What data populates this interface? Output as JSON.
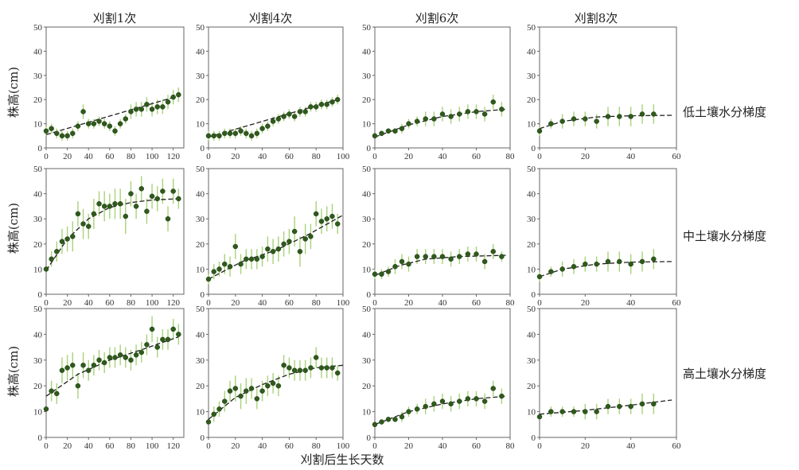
{
  "figure": {
    "col_titles": [
      "刈割1次",
      "刈割4次",
      "刈割6次",
      "刈割8次"
    ],
    "row_labels": [
      "低土壤水分梯度",
      "中土壤水分梯度",
      "高土壤水分梯度"
    ],
    "ylabel": "株高(cm)",
    "xlabel": "刈割后生长天数",
    "colors": {
      "point": "#2f5a1c",
      "errorbar": "#a8d27a",
      "trend": "#222222",
      "axis": "#666666"
    }
  },
  "chart_data": [
    {
      "type": "scatter",
      "row": 0,
      "col": 0,
      "xlim": [
        0,
        130
      ],
      "ylim": [
        0,
        50
      ],
      "xticks": [
        0,
        20,
        40,
        60,
        80,
        100,
        120
      ],
      "yticks": [
        0,
        10,
        20,
        30,
        40,
        50
      ],
      "x": [
        0,
        5,
        10,
        15,
        20,
        25,
        30,
        35,
        40,
        45,
        50,
        55,
        60,
        65,
        70,
        75,
        80,
        85,
        90,
        95,
        100,
        105,
        110,
        115,
        120,
        125
      ],
      "y": [
        7,
        8,
        6,
        5,
        5,
        6,
        9,
        15,
        10,
        10,
        11,
        10,
        9,
        7,
        10,
        12,
        15,
        16,
        16,
        18,
        16,
        17,
        17,
        19,
        21,
        22
      ],
      "err": [
        2,
        2,
        2,
        2,
        2,
        2,
        2,
        3,
        2,
        2,
        2,
        2,
        2,
        2,
        2,
        2,
        3,
        3,
        3,
        3,
        3,
        3,
        3,
        3,
        3,
        3
      ],
      "trend": [
        [
          0,
          5.5
        ],
        [
          125,
          21.5
        ]
      ]
    },
    {
      "type": "scatter",
      "row": 0,
      "col": 1,
      "xlim": [
        0,
        100
      ],
      "ylim": [
        0,
        50
      ],
      "xticks": [
        0,
        20,
        40,
        60,
        80,
        100
      ],
      "yticks": [
        0,
        10,
        20,
        30,
        40,
        50
      ],
      "x": [
        0,
        4,
        8,
        12,
        16,
        20,
        24,
        28,
        32,
        36,
        40,
        44,
        48,
        52,
        56,
        60,
        64,
        68,
        72,
        76,
        80,
        84,
        88,
        92,
        96
      ],
      "y": [
        5,
        5,
        5,
        6,
        6,
        6,
        7,
        6,
        5,
        6,
        8,
        9,
        11,
        12,
        13,
        14,
        13,
        15,
        15,
        17,
        17,
        18,
        18,
        19,
        20
      ],
      "err": [
        2,
        2,
        2,
        2,
        2,
        2,
        2,
        2,
        2,
        2,
        2,
        2,
        2,
        2,
        2,
        2,
        2,
        2,
        2,
        2,
        2,
        2,
        2,
        2,
        2
      ],
      "trend": [
        [
          0,
          4.5
        ],
        [
          96,
          20
        ]
      ]
    },
    {
      "type": "scatter",
      "row": 0,
      "col": 2,
      "xlim": [
        0,
        80
      ],
      "ylim": [
        0,
        50
      ],
      "xticks": [
        0,
        20,
        40,
        60,
        80
      ],
      "yticks": [
        0,
        10,
        20,
        30,
        40,
        50
      ],
      "x": [
        0,
        4,
        8,
        12,
        16,
        20,
        25,
        30,
        35,
        40,
        45,
        50,
        55,
        60,
        65,
        70,
        75
      ],
      "y": [
        5,
        6,
        7,
        7,
        8,
        10,
        11,
        12,
        12,
        14,
        13,
        14,
        15,
        15,
        14,
        19,
        16
      ],
      "err": [
        1,
        1,
        1,
        1,
        2,
        2,
        2,
        3,
        3,
        3,
        3,
        3,
        3,
        3,
        3,
        3,
        3
      ],
      "trend": [
        [
          0,
          4.5
        ],
        [
          20,
          9.5
        ],
        [
          40,
          13
        ],
        [
          60,
          15
        ],
        [
          78,
          16
        ]
      ]
    },
    {
      "type": "scatter",
      "row": 0,
      "col": 3,
      "xlim": [
        0,
        60
      ],
      "ylim": [
        0,
        50
      ],
      "xticks": [
        0,
        20,
        40,
        60
      ],
      "yticks": [
        0,
        10,
        20,
        30,
        40,
        50
      ],
      "x": [
        0,
        5,
        10,
        15,
        20,
        25,
        30,
        35,
        40,
        45,
        50
      ],
      "y": [
        7,
        10,
        11,
        12,
        12,
        11,
        13,
        13,
        13,
        14,
        14
      ],
      "err": [
        2,
        2,
        3,
        3,
        3,
        3,
        4,
        4,
        4,
        4,
        4
      ],
      "trend": [
        [
          0,
          8
        ],
        [
          10,
          11
        ],
        [
          25,
          12.8
        ],
        [
          40,
          13.3
        ],
        [
          58,
          13.5
        ]
      ]
    },
    {
      "type": "scatter",
      "row": 1,
      "col": 0,
      "xlim": [
        0,
        130
      ],
      "ylim": [
        0,
        50
      ],
      "xticks": [
        0,
        20,
        40,
        60,
        80,
        100,
        120
      ],
      "yticks": [
        0,
        10,
        20,
        30,
        40,
        50
      ],
      "x": [
        0,
        5,
        10,
        15,
        20,
        25,
        30,
        35,
        40,
        45,
        50,
        55,
        60,
        65,
        70,
        75,
        80,
        85,
        90,
        95,
        100,
        105,
        110,
        115,
        120,
        125
      ],
      "y": [
        10,
        14,
        17,
        21,
        22,
        23,
        32,
        28,
        27,
        32,
        36,
        35,
        35,
        36,
        36,
        31,
        40,
        35,
        42,
        33,
        39,
        38,
        41,
        30,
        41,
        38
      ],
      "err": [
        1,
        3,
        4,
        5,
        5,
        6,
        5,
        6,
        5,
        6,
        5,
        6,
        5,
        6,
        6,
        7,
        5,
        5,
        5,
        5,
        5,
        5,
        5,
        5,
        5,
        4
      ],
      "trend": [
        [
          0,
          9.5
        ],
        [
          20,
          22
        ],
        [
          40,
          30
        ],
        [
          60,
          34.5
        ],
        [
          80,
          36.5
        ],
        [
          100,
          37.5
        ],
        [
          125,
          38
        ]
      ]
    },
    {
      "type": "scatter",
      "row": 1,
      "col": 1,
      "xlim": [
        0,
        100
      ],
      "ylim": [
        0,
        50
      ],
      "xticks": [
        0,
        20,
        40,
        60,
        80,
        100
      ],
      "yticks": [
        0,
        10,
        20,
        30,
        40,
        50
      ],
      "x": [
        0,
        4,
        8,
        12,
        16,
        20,
        24,
        28,
        32,
        36,
        40,
        44,
        48,
        52,
        56,
        60,
        64,
        68,
        72,
        76,
        80,
        84,
        88,
        92,
        96
      ],
      "y": [
        6,
        9,
        10,
        12,
        11,
        19,
        12,
        14,
        14,
        14,
        15,
        18,
        17,
        18,
        20,
        21,
        25,
        17,
        22,
        23,
        32,
        29,
        30,
        31,
        28
      ],
      "err": [
        2,
        3,
        3,
        4,
        4,
        5,
        4,
        4,
        4,
        4,
        4,
        5,
        5,
        5,
        5,
        5,
        6,
        6,
        6,
        5,
        5,
        5,
        5,
        5,
        4
      ],
      "trend": [
        [
          0,
          6
        ],
        [
          25,
          13
        ],
        [
          50,
          17.5
        ],
        [
          75,
          24
        ],
        [
          100,
          31.5
        ]
      ]
    },
    {
      "type": "scatter",
      "row": 1,
      "col": 2,
      "xlim": [
        0,
        80
      ],
      "ylim": [
        0,
        50
      ],
      "xticks": [
        0,
        20,
        40,
        60,
        80
      ],
      "yticks": [
        0,
        10,
        20,
        30,
        40,
        50
      ],
      "x": [
        0,
        4,
        8,
        12,
        16,
        20,
        25,
        30,
        35,
        40,
        45,
        50,
        55,
        60,
        65,
        70,
        75
      ],
      "y": [
        8,
        8,
        9,
        11,
        13,
        12,
        15,
        15,
        15,
        15,
        14,
        15,
        16,
        16,
        13,
        17,
        15
      ],
      "err": [
        2,
        2,
        2,
        3,
        3,
        3,
        3,
        3,
        3,
        3,
        3,
        3,
        3,
        3,
        3,
        3,
        2
      ],
      "trend": [
        [
          0,
          7.5
        ],
        [
          15,
          11.5
        ],
        [
          30,
          14
        ],
        [
          50,
          15
        ],
        [
          78,
          15.5
        ]
      ]
    },
    {
      "type": "scatter",
      "row": 1,
      "col": 3,
      "xlim": [
        0,
        60
      ],
      "ylim": [
        0,
        50
      ],
      "xticks": [
        0,
        20,
        40,
        60
      ],
      "yticks": [
        0,
        10,
        20,
        30,
        40,
        50
      ],
      "x": [
        0,
        5,
        10,
        15,
        20,
        25,
        30,
        35,
        40,
        45,
        50
      ],
      "y": [
        7,
        9,
        10,
        11,
        12,
        12,
        13,
        13,
        12,
        13,
        14
      ],
      "err": [
        2,
        2,
        3,
        3,
        3,
        3,
        4,
        4,
        4,
        4,
        4
      ],
      "trend": [
        [
          0,
          7
        ],
        [
          10,
          10
        ],
        [
          25,
          12
        ],
        [
          40,
          12.8
        ],
        [
          58,
          13
        ]
      ]
    },
    {
      "type": "scatter",
      "row": 2,
      "col": 0,
      "xlim": [
        0,
        130
      ],
      "ylim": [
        0,
        50
      ],
      "xticks": [
        0,
        20,
        40,
        60,
        80,
        100,
        120
      ],
      "yticks": [
        0,
        10,
        20,
        30,
        40,
        50
      ],
      "x": [
        0,
        5,
        10,
        15,
        20,
        25,
        30,
        35,
        40,
        45,
        50,
        55,
        60,
        65,
        70,
        75,
        80,
        85,
        90,
        95,
        100,
        105,
        110,
        115,
        120,
        125
      ],
      "y": [
        11,
        18,
        17,
        26,
        27,
        28,
        20,
        28,
        26,
        28,
        30,
        29,
        31,
        31,
        32,
        31,
        30,
        32,
        33,
        36,
        42,
        35,
        38,
        38,
        42,
        40
      ],
      "err": [
        1,
        4,
        4,
        5,
        5,
        5,
        5,
        5,
        4,
        4,
        4,
        4,
        4,
        4,
        4,
        4,
        4,
        4,
        4,
        4,
        5,
        4,
        4,
        4,
        4,
        4
      ],
      "trend": [
        [
          0,
          16
        ],
        [
          30,
          24.5
        ],
        [
          60,
          30
        ],
        [
          90,
          34
        ],
        [
          125,
          39
        ]
      ]
    },
    {
      "type": "scatter",
      "row": 2,
      "col": 1,
      "xlim": [
        0,
        100
      ],
      "ylim": [
        0,
        50
      ],
      "xticks": [
        0,
        20,
        40,
        60,
        80,
        100
      ],
      "yticks": [
        0,
        10,
        20,
        30,
        40,
        50
      ],
      "x": [
        0,
        4,
        8,
        12,
        16,
        20,
        24,
        28,
        32,
        36,
        40,
        44,
        48,
        52,
        56,
        60,
        64,
        68,
        72,
        76,
        80,
        84,
        88,
        92,
        96
      ],
      "y": [
        6,
        9,
        11,
        14,
        18,
        19,
        16,
        18,
        19,
        15,
        18,
        20,
        21,
        20,
        28,
        27,
        26,
        26,
        26,
        27,
        31,
        27,
        27,
        27,
        25
      ],
      "err": [
        1,
        3,
        3,
        4,
        4,
        5,
        5,
        5,
        4,
        4,
        4,
        4,
        4,
        4,
        4,
        4,
        4,
        4,
        4,
        4,
        4,
        4,
        4,
        4,
        3
      ],
      "trend": [
        [
          0,
          7
        ],
        [
          20,
          15.5
        ],
        [
          40,
          20.5
        ],
        [
          60,
          24.5
        ],
        [
          80,
          27
        ],
        [
          100,
          28
        ]
      ]
    },
    {
      "type": "scatter",
      "row": 2,
      "col": 2,
      "xlim": [
        0,
        80
      ],
      "ylim": [
        0,
        50
      ],
      "xticks": [
        0,
        20,
        40,
        60,
        80
      ],
      "yticks": [
        0,
        10,
        20,
        30,
        40,
        50
      ],
      "x": [
        0,
        4,
        8,
        12,
        16,
        20,
        25,
        30,
        35,
        40,
        45,
        50,
        55,
        60,
        65,
        70,
        75
      ],
      "y": [
        5,
        6,
        7,
        7,
        8,
        10,
        11,
        12,
        13,
        14,
        13,
        14,
        15,
        15,
        14,
        19,
        16
      ],
      "err": [
        1,
        1,
        1,
        1,
        2,
        2,
        2,
        3,
        3,
        3,
        3,
        3,
        3,
        3,
        3,
        3,
        3
      ],
      "trend": [
        [
          0,
          5
        ],
        [
          20,
          10
        ],
        [
          40,
          13
        ],
        [
          60,
          15
        ],
        [
          78,
          16
        ]
      ]
    },
    {
      "type": "scatter",
      "row": 2,
      "col": 3,
      "xlim": [
        0,
        60
      ],
      "ylim": [
        0,
        50
      ],
      "xticks": [
        0,
        20,
        40,
        60
      ],
      "yticks": [
        0,
        10,
        20,
        30,
        40,
        50
      ],
      "x": [
        0,
        5,
        10,
        15,
        20,
        25,
        30,
        35,
        40,
        45,
        50
      ],
      "y": [
        8,
        10,
        10,
        10,
        10,
        10,
        12,
        12,
        12,
        13,
        13
      ],
      "err": [
        1,
        2,
        2,
        2,
        3,
        3,
        3,
        3,
        3,
        4,
        4
      ],
      "trend": [
        [
          0,
          9
        ],
        [
          20,
          10.5
        ],
        [
          40,
          12.5
        ],
        [
          58,
          14.5
        ]
      ]
    }
  ]
}
